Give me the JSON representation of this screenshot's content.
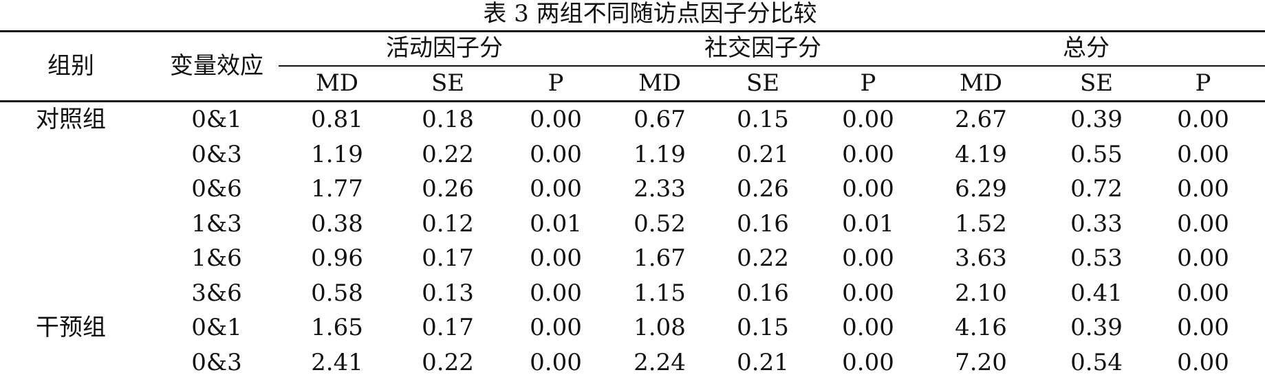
{
  "title": "表 3 两组不同随访点因子分比较",
  "table": {
    "row_headers": [
      "组别",
      "变量效应"
    ],
    "groups": [
      "活动因子分",
      "社交因子分",
      "总分"
    ],
    "subheaders": [
      "MD",
      "SE",
      "P",
      "MD",
      "SE",
      "P",
      "MD",
      "SE",
      "P"
    ],
    "rows": [
      {
        "group": "对照组",
        "effect": "0&1",
        "values": [
          "0.81",
          "0.18",
          "0.00",
          "0.67",
          "0.15",
          "0.00",
          "2.67",
          "0.39",
          "0.00"
        ]
      },
      {
        "effect": "0&3",
        "values": [
          "1.19",
          "0.22",
          "0.00",
          "1.19",
          "0.21",
          "0.00",
          "4.19",
          "0.55",
          "0.00"
        ]
      },
      {
        "effect": "0&6",
        "values": [
          "1.77",
          "0.26",
          "0.00",
          "2.33",
          "0.26",
          "0.00",
          "6.29",
          "0.72",
          "0.00"
        ]
      },
      {
        "effect": "1&3",
        "values": [
          "0.38",
          "0.12",
          "0.01",
          "0.52",
          "0.16",
          "0.01",
          "1.52",
          "0.33",
          "0.00"
        ]
      },
      {
        "effect": "1&6",
        "values": [
          "0.96",
          "0.17",
          "0.00",
          "1.67",
          "0.22",
          "0.00",
          "3.63",
          "0.53",
          "0.00"
        ]
      },
      {
        "effect": "3&6",
        "values": [
          "0.58",
          "0.13",
          "0.00",
          "1.15",
          "0.16",
          "0.00",
          "2.10",
          "0.41",
          "0.00"
        ]
      },
      {
        "group": "干预组",
        "effect": "0&1",
        "values": [
          "1.65",
          "0.17",
          "0.00",
          "1.08",
          "0.15",
          "0.00",
          "4.16",
          "0.39",
          "0.00"
        ]
      },
      {
        "effect": "0&3",
        "values": [
          "2.41",
          "0.22",
          "0.00",
          "2.24",
          "0.21",
          "0.00",
          "7.20",
          "0.54",
          "0.00"
        ]
      }
    ]
  }
}
